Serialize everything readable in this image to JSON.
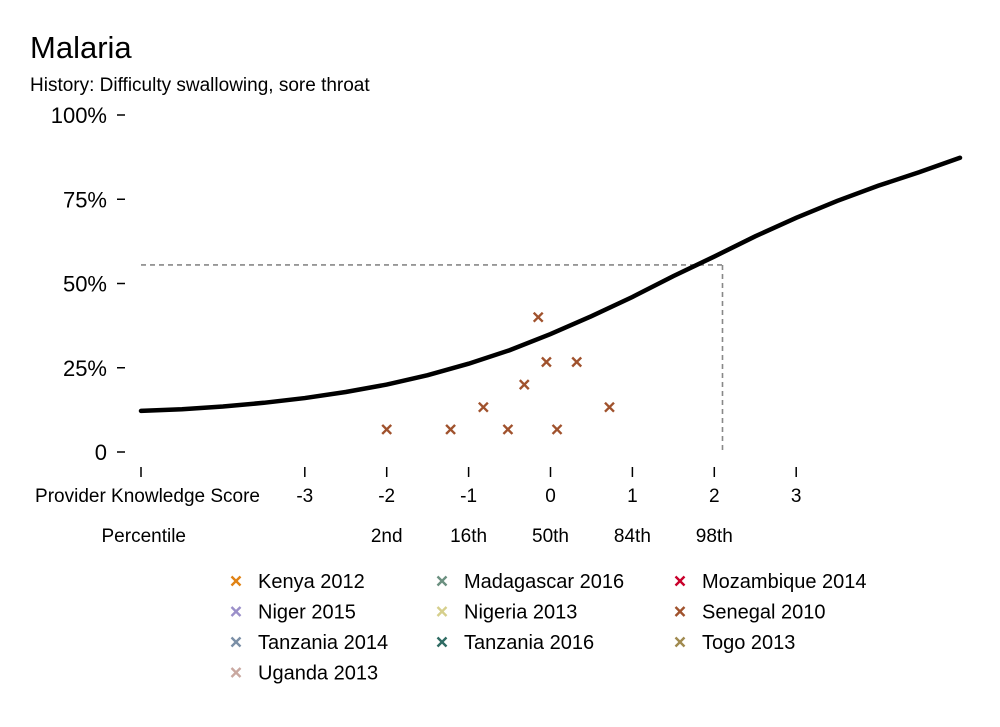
{
  "chart_data": {
    "type": "scatter",
    "title": "Malaria",
    "subtitle": "History: Difficulty swallowing, sore throat",
    "y_axis": {
      "range": [
        0,
        1
      ],
      "ticks": [
        {
          "value": 0,
          "label": "0"
        },
        {
          "value": 0.25,
          "label": "25%"
        },
        {
          "value": 0.5,
          "label": "50%"
        },
        {
          "value": 0.75,
          "label": "75%"
        },
        {
          "value": 1.0,
          "label": "100%"
        }
      ]
    },
    "x_axis": {
      "range": [
        -5,
        5
      ],
      "row1_label": "Provider Knowledge Score",
      "ticks": [
        {
          "value": -3,
          "label": "-3"
        },
        {
          "value": -2,
          "label": "-2"
        },
        {
          "value": -1,
          "label": "-1"
        },
        {
          "value": 0,
          "label": "0"
        },
        {
          "value": 1,
          "label": "1"
        },
        {
          "value": 2,
          "label": "2"
        },
        {
          "value": 3,
          "label": "3"
        }
      ],
      "row2_label": "Percentile",
      "percentiles": [
        {
          "value": -2,
          "label": "2nd"
        },
        {
          "value": -1,
          "label": "16th"
        },
        {
          "value": 0,
          "label": "50th"
        },
        {
          "value": 1,
          "label": "84th"
        },
        {
          "value": 2,
          "label": "98th"
        }
      ]
    },
    "curve": {
      "color": "#000000",
      "points": [
        {
          "x": -5.0,
          "y": 0.122
        },
        {
          "x": -4.5,
          "y": 0.127
        },
        {
          "x": -4.0,
          "y": 0.135
        },
        {
          "x": -3.5,
          "y": 0.146
        },
        {
          "x": -3.0,
          "y": 0.16
        },
        {
          "x": -2.5,
          "y": 0.178
        },
        {
          "x": -2.0,
          "y": 0.2
        },
        {
          "x": -1.5,
          "y": 0.228
        },
        {
          "x": -1.0,
          "y": 0.262
        },
        {
          "x": -0.5,
          "y": 0.302
        },
        {
          "x": 0.0,
          "y": 0.35
        },
        {
          "x": 0.5,
          "y": 0.403
        },
        {
          "x": 1.0,
          "y": 0.46
        },
        {
          "x": 1.5,
          "y": 0.522
        },
        {
          "x": 2.0,
          "y": 0.58
        },
        {
          "x": 2.5,
          "y": 0.64
        },
        {
          "x": 3.0,
          "y": 0.695
        },
        {
          "x": 3.5,
          "y": 0.745
        },
        {
          "x": 4.0,
          "y": 0.79
        },
        {
          "x": 4.5,
          "y": 0.83
        },
        {
          "x": 5.0,
          "y": 0.873
        }
      ]
    },
    "reference": {
      "x": 2.1,
      "y": 0.555
    },
    "series": [
      {
        "name": "Senegal 2010",
        "color": "#a0522d",
        "points": [
          {
            "x": -2.0,
            "y": 0.067
          },
          {
            "x": -1.22,
            "y": 0.067
          },
          {
            "x": -0.82,
            "y": 0.133
          },
          {
            "x": -0.52,
            "y": 0.067
          },
          {
            "x": -0.32,
            "y": 0.2
          },
          {
            "x": -0.15,
            "y": 0.4
          },
          {
            "x": -0.05,
            "y": 0.267
          },
          {
            "x": 0.08,
            "y": 0.067
          },
          {
            "x": 0.32,
            "y": 0.267
          },
          {
            "x": 0.72,
            "y": 0.133
          }
        ]
      }
    ],
    "legend": [
      {
        "name": "Kenya 2012",
        "color": "#e08214"
      },
      {
        "name": "Madagascar 2016",
        "color": "#6b9080"
      },
      {
        "name": "Mozambique 2014",
        "color": "#c9002b"
      },
      {
        "name": "Niger 2015",
        "color": "#9b8fc9"
      },
      {
        "name": "Nigeria 2013",
        "color": "#d6cf8c"
      },
      {
        "name": "Senegal 2010",
        "color": "#a0522d"
      },
      {
        "name": "Tanzania 2014",
        "color": "#7b8fa6"
      },
      {
        "name": "Tanzania 2016",
        "color": "#2f6b63"
      },
      {
        "name": "Togo 2013",
        "color": "#a08a4f"
      },
      {
        "name": "Uganda 2013",
        "color": "#c9a8a0"
      }
    ]
  }
}
